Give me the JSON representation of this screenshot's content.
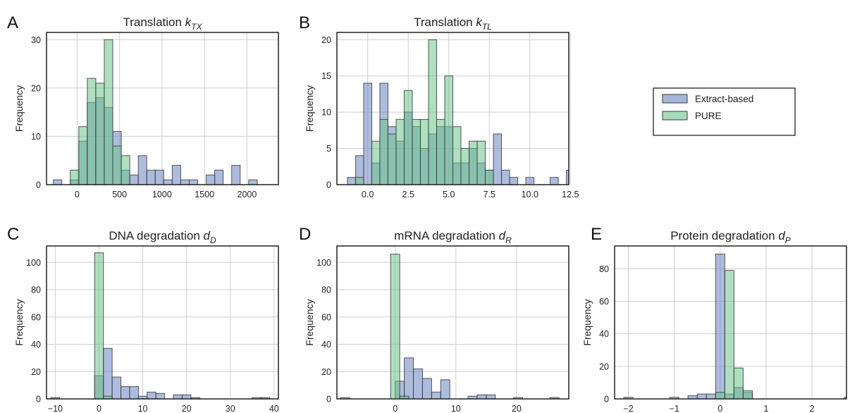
{
  "colors": {
    "extract": "#6a85c2",
    "pure": "#6cc489",
    "overlap": "#3f8a73",
    "grid": "#cfcfcf",
    "edge": "#3a3a3a"
  },
  "legend": {
    "position": "right",
    "items": [
      {
        "label": "Extract-based",
        "color": "#6a85c2"
      },
      {
        "label": "PURE",
        "color": "#6cc489"
      }
    ]
  },
  "chart_data": [
    {
      "panel": "A",
      "type": "histogram",
      "title": "Translation k",
      "title_sub": "TX",
      "ylabel": "Frequency",
      "xlim": [
        -360,
        2370
      ],
      "ylim": [
        0,
        31.5
      ],
      "xticks": [
        0,
        500,
        1000,
        1500,
        2000
      ],
      "xtick_labels": [
        "0",
        "500",
        "1000",
        "1500",
        "2000"
      ],
      "yticks": [
        0,
        10,
        20,
        30
      ],
      "ytick_labels": [
        "0",
        "10",
        "20",
        "30"
      ],
      "grid": true,
      "series": [
        {
          "name": "Extract-based",
          "bin_start": -280,
          "bin_width": 100,
          "counts": [
            1,
            0,
            1,
            9,
            17,
            18,
            16,
            11,
            3,
            2,
            6,
            3,
            3,
            1,
            4,
            1,
            1,
            0,
            2,
            3,
            0,
            4,
            0,
            1
          ]
        },
        {
          "name": "PURE",
          "bin_start": -80,
          "bin_width": 100,
          "counts": [
            3,
            12,
            22,
            21,
            30,
            8,
            6
          ]
        }
      ]
    },
    {
      "panel": "B",
      "type": "histogram",
      "title": "Translation k",
      "title_sub": "TL",
      "ylabel": "Frequency",
      "xlim": [
        -1.9,
        12.4
      ],
      "ylim": [
        0,
        21
      ],
      "xticks": [
        0,
        2.5,
        5,
        7.5,
        10,
        12.5
      ],
      "xtick_labels": [
        "0.0",
        "2.5",
        "5.0",
        "7.5",
        "10.0",
        "12.5"
      ],
      "yticks": [
        0,
        5,
        10,
        15,
        20
      ],
      "ytick_labels": [
        "0",
        "5",
        "10",
        "15",
        "20"
      ],
      "grid": true,
      "series": [
        {
          "name": "Extract-based",
          "bin_start": -1.25,
          "bin_width": 0.5,
          "counts": [
            1,
            4,
            14,
            3,
            14,
            8,
            6,
            10,
            8,
            5,
            7,
            8,
            8,
            3,
            3,
            5,
            3,
            2,
            7,
            2,
            1,
            0,
            1,
            0,
            0,
            1,
            0,
            2,
            2
          ]
        },
        {
          "name": "PURE",
          "bin_start": -0.75,
          "bin_width": 0.5,
          "counts": [
            1,
            0,
            6,
            9,
            7,
            9,
            13,
            9,
            9,
            20,
            9,
            15,
            8,
            5,
            6,
            6,
            2
          ]
        }
      ]
    },
    {
      "panel": "C",
      "type": "histogram",
      "title": "DNA degradation d",
      "title_sub": "D",
      "ylabel": "Frequency",
      "xlim": [
        -12,
        41
      ],
      "ylim": [
        0,
        112
      ],
      "xticks": [
        -10,
        0,
        10,
        20,
        30,
        40
      ],
      "xtick_labels": [
        "−10",
        "0",
        "10",
        "20",
        "30",
        "40"
      ],
      "yticks": [
        0,
        20,
        40,
        60,
        80,
        100
      ],
      "ytick_labels": [
        "0",
        "20",
        "40",
        "60",
        "80",
        "100"
      ],
      "grid": true,
      "series": [
        {
          "name": "Extract-based",
          "bin_start": -11,
          "bin_width": 2,
          "counts": [
            1,
            0,
            0,
            0,
            0,
            17,
            37,
            16,
            9,
            9,
            2,
            5,
            4,
            0,
            3,
            3,
            1,
            0,
            0,
            0,
            0,
            0,
            0,
            1,
            1
          ]
        },
        {
          "name": "PURE",
          "bin_start": -1,
          "bin_width": 2,
          "counts": [
            107,
            2
          ]
        }
      ]
    },
    {
      "panel": "D",
      "type": "histogram",
      "title": "mRNA degradation d",
      "title_sub": "R",
      "ylabel": "Frequency",
      "xlim": [
        -9.6,
        28.6
      ],
      "ylim": [
        0,
        112
      ],
      "xticks": [
        0,
        10,
        20
      ],
      "xtick_labels": [
        "0",
        "10",
        "20"
      ],
      "yticks": [
        0,
        20,
        40,
        60,
        80,
        100
      ],
      "ytick_labels": [
        "0",
        "20",
        "40",
        "60",
        "80",
        "100"
      ],
      "grid": true,
      "series": [
        {
          "name": "Extract-based",
          "bin_start": -9,
          "bin_width": 1.5,
          "counts": [
            1,
            0,
            0,
            0,
            0,
            0,
            13,
            30,
            22,
            15,
            5,
            14,
            0,
            0,
            2,
            3,
            3,
            0,
            0,
            1,
            0,
            0,
            0,
            1,
            0,
            0,
            1
          ]
        },
        {
          "name": "PURE",
          "bin_start": -0.75,
          "bin_width": 1.5,
          "counts": [
            106,
            2
          ]
        }
      ]
    },
    {
      "panel": "E",
      "type": "histogram",
      "title": "Protein degradation d",
      "title_sub": "P",
      "ylabel": "Frequency",
      "xlim": [
        -2.3,
        2.75
      ],
      "ylim": [
        0,
        94
      ],
      "xticks": [
        -2,
        -1,
        0,
        1,
        2
      ],
      "xtick_labels": [
        "−2",
        "−1",
        "0",
        "1",
        "2"
      ],
      "yticks": [
        0,
        20,
        40,
        60,
        80
      ],
      "ytick_labels": [
        "0",
        "20",
        "40",
        "60",
        "80"
      ],
      "grid": true,
      "series": [
        {
          "name": "Extract-based",
          "bin_start": -2.1,
          "bin_width": 0.2,
          "counts": [
            1,
            0,
            0,
            0,
            0,
            1,
            0,
            2,
            3,
            3,
            89,
            3,
            7,
            4,
            0,
            0,
            0,
            0,
            0,
            0,
            0,
            0,
            0,
            0,
            1
          ]
        },
        {
          "name": "PURE",
          "bin_start": -0.3,
          "bin_width": 0.2,
          "counts": [
            0,
            4,
            79,
            19,
            5
          ]
        }
      ]
    }
  ]
}
